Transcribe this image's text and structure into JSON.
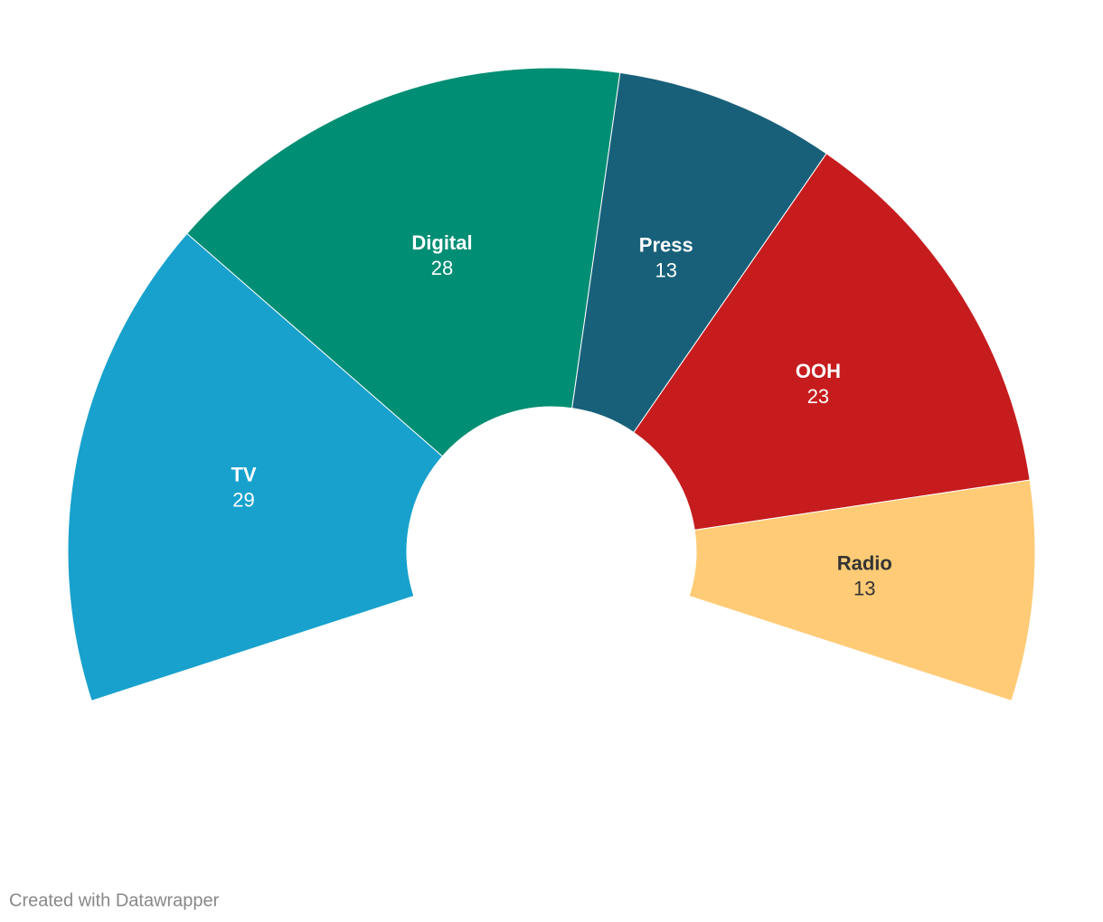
{
  "chart_data": {
    "type": "arc",
    "categories": [
      "TV",
      "Digital",
      "Press",
      "OOH",
      "Radio"
    ],
    "values": [
      29,
      28,
      13,
      23,
      13
    ],
    "colors": [
      "#18a1cd",
      "#008e74",
      "#18607a",
      "#c61c1e",
      "#ffcb76"
    ],
    "credit": "Created with Datawrapper"
  }
}
